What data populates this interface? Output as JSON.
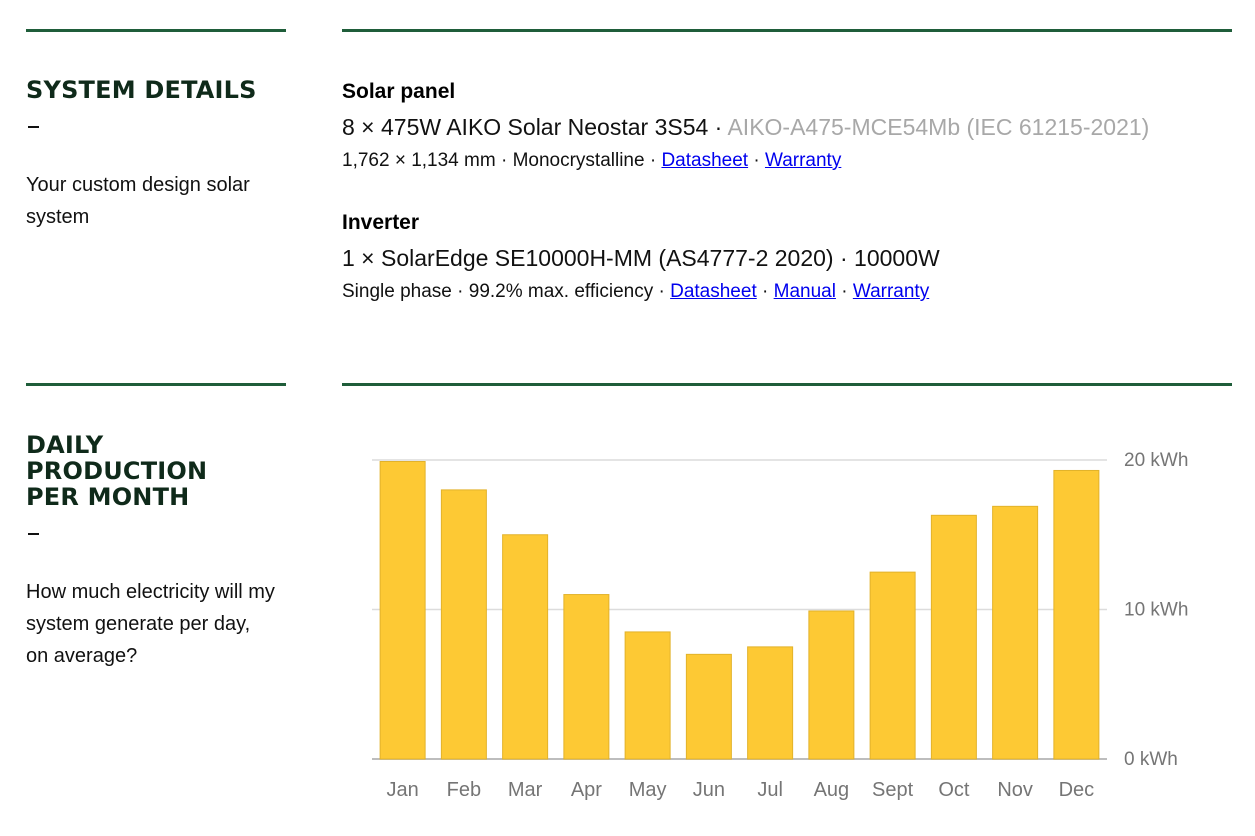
{
  "system_details": {
    "title": "SYSTEM DETAILS",
    "dash": "–",
    "description": "Your custom design solar system",
    "solar_panel": {
      "heading": "Solar panel",
      "main": "8 × 475W AIKO Solar Neostar 3S54 ·",
      "model": "AIKO-A475-MCE54Mb (IEC 61215-2021)",
      "specs": "1,762 × 1,134 mm · Monocrystalline ·",
      "sep": "·",
      "datasheet_link": "Datasheet",
      "warranty_link": "Warranty"
    },
    "inverter": {
      "heading": "Inverter",
      "main": "1 × SolarEdge SE10000H-MM (AS4777-2 2020) · 10000W",
      "specs": "Single phase · 99.2% max. efficiency ·",
      "sep": "·",
      "datasheet_link": "Datasheet",
      "manual_link": "Manual",
      "warranty_link": "Warranty"
    }
  },
  "daily_production": {
    "title": "DAILY PRODUCTION PER MONTH",
    "dash": "–",
    "description": "How much electricity will my system generate per day, on average?"
  },
  "colors": {
    "accent_green": "#1f5d3a",
    "heading_dark": "#0f2a1a",
    "bar_yellow": "#fdc934",
    "link_blue": "#0000ee"
  },
  "chart_data": {
    "type": "bar",
    "categories": [
      "Jan",
      "Feb",
      "Mar",
      "Apr",
      "May",
      "Jun",
      "Jul",
      "Aug",
      "Sept",
      "Oct",
      "Nov",
      "Dec"
    ],
    "values": [
      19.9,
      18.0,
      15.0,
      11.0,
      8.5,
      7.0,
      7.5,
      9.9,
      12.5,
      16.3,
      16.9,
      19.3
    ],
    "ylim": [
      0,
      20
    ],
    "yticks": [
      0,
      10,
      20
    ],
    "ytick_labels": [
      "0 kWh",
      "10 kWh",
      "20 kWh"
    ],
    "grid": true,
    "axis_side": "right"
  }
}
